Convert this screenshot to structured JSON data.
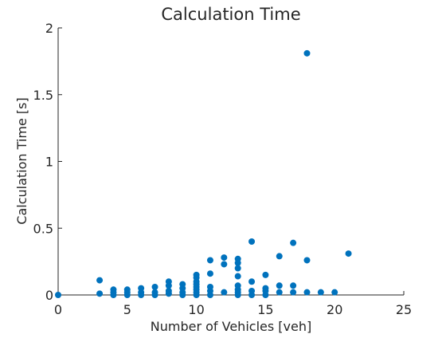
{
  "chart_data": {
    "type": "scatter",
    "title": "Calculation Time",
    "xlabel": "Number of Vehicles [veh]",
    "ylabel": "Calculation Time [s]",
    "xlim": [
      0,
      25
    ],
    "ylim": [
      0,
      2
    ],
    "xticks": [
      0,
      5,
      10,
      15,
      20,
      25
    ],
    "xtick_labels": [
      "0",
      "5",
      "10",
      "15",
      "20",
      "25"
    ],
    "yticks": [
      0,
      0.5,
      1,
      1.5,
      2
    ],
    "ytick_labels": [
      "0",
      "0.5",
      "1",
      "1.5",
      "2"
    ],
    "grid": false,
    "marker_color": "#0072BD",
    "points": [
      [
        0,
        0.0
      ],
      [
        3,
        0.11
      ],
      [
        3,
        0.01
      ],
      [
        4,
        0.04
      ],
      [
        4,
        0.02
      ],
      [
        4,
        0.0
      ],
      [
        5,
        0.04
      ],
      [
        5,
        0.02
      ],
      [
        5,
        0.0
      ],
      [
        6,
        0.05
      ],
      [
        6,
        0.02
      ],
      [
        6,
        0.0
      ],
      [
        7,
        0.06
      ],
      [
        7,
        0.02
      ],
      [
        7,
        0.0
      ],
      [
        8,
        0.1
      ],
      [
        8,
        0.07
      ],
      [
        8,
        0.03
      ],
      [
        8,
        0.01
      ],
      [
        9,
        0.08
      ],
      [
        9,
        0.05
      ],
      [
        9,
        0.02
      ],
      [
        9,
        0.0
      ],
      [
        10,
        0.15
      ],
      [
        10,
        0.13
      ],
      [
        10,
        0.1
      ],
      [
        10,
        0.08
      ],
      [
        10,
        0.06
      ],
      [
        10,
        0.04
      ],
      [
        10,
        0.02
      ],
      [
        10,
        0.0
      ],
      [
        11,
        0.26
      ],
      [
        11,
        0.16
      ],
      [
        11,
        0.06
      ],
      [
        11,
        0.03
      ],
      [
        11,
        0.0
      ],
      [
        12,
        0.28
      ],
      [
        12,
        0.23
      ],
      [
        12,
        0.02
      ],
      [
        13,
        0.27
      ],
      [
        13,
        0.24
      ],
      [
        13,
        0.2
      ],
      [
        13,
        0.14
      ],
      [
        13,
        0.07
      ],
      [
        13,
        0.04
      ],
      [
        13,
        0.02
      ],
      [
        13,
        0.0
      ],
      [
        14,
        0.4
      ],
      [
        14,
        0.1
      ],
      [
        14,
        0.03
      ],
      [
        14,
        0.0
      ],
      [
        15,
        0.15
      ],
      [
        15,
        0.05
      ],
      [
        15,
        0.03
      ],
      [
        15,
        0.0
      ],
      [
        16,
        0.29
      ],
      [
        16,
        0.07
      ],
      [
        16,
        0.02
      ],
      [
        17,
        0.39
      ],
      [
        17,
        0.07
      ],
      [
        17,
        0.02
      ],
      [
        18,
        1.81
      ],
      [
        18,
        0.26
      ],
      [
        18,
        0.02
      ],
      [
        19,
        0.02
      ],
      [
        20,
        0.02
      ],
      [
        21,
        0.31
      ]
    ]
  }
}
